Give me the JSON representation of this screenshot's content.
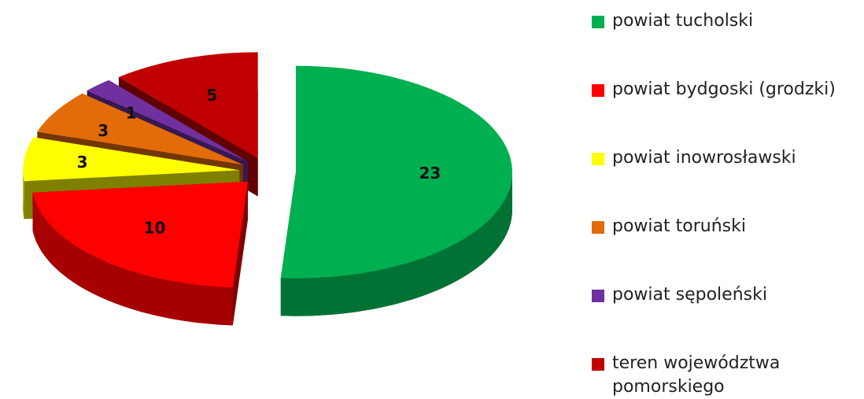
{
  "chart_data": {
    "type": "pie",
    "categories": [
      "powiat tucholski",
      "powiat bydgoski (grodzki)",
      "powiat inowrosławski",
      "powiat toruński",
      "powiat sępoleński",
      "teren województwa pomorskiego"
    ],
    "values": [
      23,
      10,
      3,
      3,
      1,
      5
    ],
    "colors": [
      "#00b050",
      "#ff0000",
      "#ffff00",
      "#e36c09",
      "#7030a0",
      "#c00000"
    ],
    "legend": "right"
  }
}
